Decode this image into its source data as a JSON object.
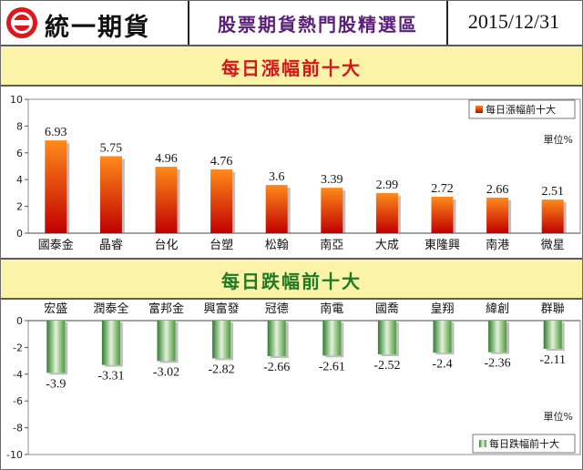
{
  "header": {
    "brand": "統一期貨",
    "title": "股票期貨熱門股精選區",
    "date": "2015/12/31"
  },
  "chart_data": [
    {
      "type": "bar",
      "title": "每日漲幅前十大",
      "categories": [
        "國泰金",
        "晶睿",
        "台化",
        "台塑",
        "松翰",
        "南亞",
        "大成",
        "東隆興",
        "南港",
        "微星"
      ],
      "series": [
        {
          "name": "每日漲幅前十大",
          "values": [
            6.93,
            5.75,
            4.96,
            4.76,
            3.6,
            3.39,
            2.99,
            2.72,
            2.66,
            2.51
          ]
        }
      ],
      "value_labels": [
        "6.93",
        "5.75",
        "4.96",
        "4.76",
        "3.6",
        "3.39",
        "2.99",
        "2.72",
        "2.66",
        "2.51"
      ],
      "yticks": [
        "0",
        "2",
        "4",
        "6",
        "8",
        "10"
      ],
      "ylim": [
        0,
        10
      ],
      "unit": "單位%",
      "legend_position": "top-right",
      "grid": false,
      "colors": {
        "bar_top": "#ff8a1a",
        "bar_bottom": "#c00000"
      }
    },
    {
      "type": "bar",
      "title": "每日跌幅前十大",
      "categories": [
        "宏盛",
        "潤泰全",
        "富邦金",
        "興富發",
        "冠德",
        "南電",
        "國喬",
        "皇翔",
        "緯創",
        "群聯"
      ],
      "series": [
        {
          "name": "每日跌幅前十大",
          "values": [
            -3.9,
            -3.31,
            -3.02,
            -2.82,
            -2.66,
            -2.61,
            -2.52,
            -2.4,
            -2.36,
            -2.11
          ]
        }
      ],
      "value_labels": [
        "-3.9",
        "-3.31",
        "-3.02",
        "-2.82",
        "-2.66",
        "-2.61",
        "-2.52",
        "-2.4",
        "-2.36",
        "-2.11"
      ],
      "yticks": [
        "0",
        "-2",
        "-4",
        "-6",
        "-8",
        "-10"
      ],
      "ylim": [
        -10,
        0
      ],
      "unit": "單位%",
      "legend_position": "bottom-right",
      "grid": false,
      "colors": {
        "bar_left": "#2f7d2f",
        "bar_mid": "#e3f2d8",
        "bar_right": "#4c9a3c"
      }
    }
  ]
}
